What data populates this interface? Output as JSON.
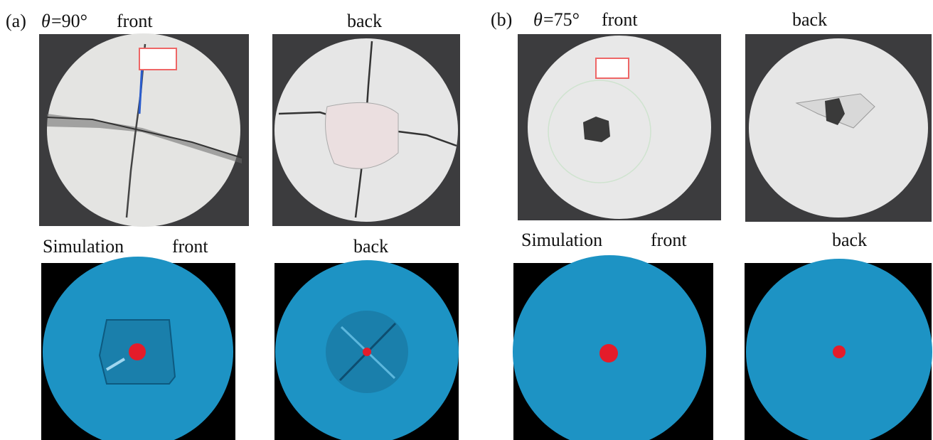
{
  "panels": [
    {
      "label": "(a)",
      "angle_symbol": "θ",
      "angle_value": "=90°",
      "photo_front": "front",
      "photo_back": "back",
      "simulation": "Simulation",
      "sim_front": "front",
      "sim_back": "back"
    },
    {
      "label": "(b)",
      "angle_symbol": "θ",
      "angle_value": "=75°",
      "photo_front": "front",
      "photo_back": "back",
      "simulation": "Simulation",
      "sim_front": "front",
      "sim_back": "back"
    }
  ]
}
